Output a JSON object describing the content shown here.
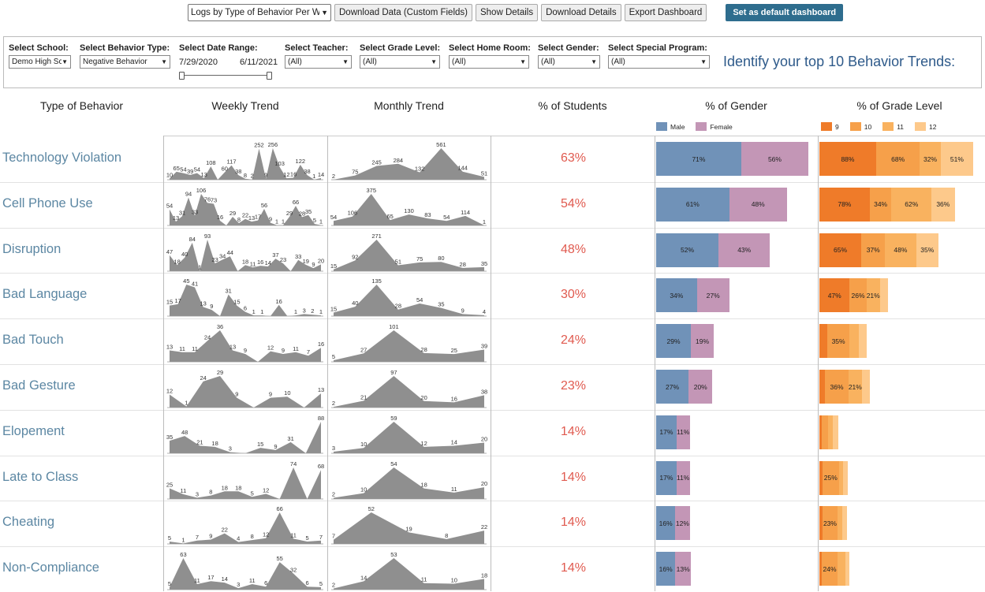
{
  "toolbar": {
    "view_select": "Logs by Type of Behavior Per Week",
    "download_data": "Download Data (Custom Fields)",
    "show_details": "Show Details",
    "download_details": "Download Details",
    "export_dashboard": "Export Dashboard",
    "set_default": "Set as default dashboard"
  },
  "filters": {
    "school": {
      "label": "Select School:",
      "value": "Demo High School"
    },
    "behavior_type": {
      "label": "Select Behavior Type:",
      "value": "Negative Behavior"
    },
    "date_range": {
      "label": "Select Date Range:",
      "start": "7/29/2020",
      "end": "6/11/2021"
    },
    "teacher": {
      "label": "Select Teacher:",
      "value": "(All)"
    },
    "grade_level": {
      "label": "Select Grade Level:",
      "value": "(All)"
    },
    "home_room": {
      "label": "Select Home Room:",
      "value": "(All)"
    },
    "gender": {
      "label": "Select Gender:",
      "value": "(All)"
    },
    "special_program": {
      "label": "Select Special Program:",
      "value": "(All)"
    },
    "title": "Identify your top 10 Behavior Trends:"
  },
  "headers": {
    "type": "Type of Behavior",
    "weekly": "Weekly Trend",
    "monthly": "Monthly Trend",
    "students": "% of Students",
    "gender": "% of Gender",
    "grade": "% of Grade Level"
  },
  "legends": {
    "gender": [
      {
        "name": "Male",
        "color": "#7092b8"
      },
      {
        "name": "Female",
        "color": "#c396b6"
      }
    ],
    "grade": [
      {
        "name": "9",
        "color": "#ef7b29"
      },
      {
        "name": "10",
        "color": "#f6a04a"
      },
      {
        "name": "11",
        "color": "#f9b25f"
      },
      {
        "name": "12",
        "color": "#fdc98b"
      }
    ]
  },
  "colors": {
    "male": "#7092b8",
    "female": "#c396b6",
    "grade": [
      "#ef7b29",
      "#f6a04a",
      "#f9b25f",
      "#fdc98b"
    ],
    "area": "#8f8f8f",
    "pct": "#e05a4f"
  },
  "rows": [
    {
      "name": "Technology Violation",
      "pct": "63%",
      "weekly": [
        10,
        65,
        54,
        39,
        54,
        13,
        108,
        "",
        60,
        117,
        38,
        8,
        2,
        252,
        9,
        256,
        103,
        12,
        16,
        122,
        38,
        1,
        14
      ],
      "monthly": [
        2,
        75,
        245,
        284,
        132,
        561,
        144,
        51
      ],
      "gender": [
        {
          "v": 71,
          "l": "71%"
        },
        {
          "v": 56,
          "l": "56%"
        }
      ],
      "grade": [
        {
          "v": 88,
          "l": "88%"
        },
        {
          "v": 68,
          "l": "68%"
        },
        {
          "v": 32,
          "l": "32%"
        },
        {
          "v": 51,
          "l": "51%"
        }
      ]
    },
    {
      "name": "Cell Phone Use",
      "pct": "54%",
      "weekly": [
        54,
        13,
        31,
        94,
        33,
        106,
        76,
        73,
        16,
        "",
        29,
        8,
        22,
        13,
        17,
        56,
        9,
        1,
        1,
        29,
        66,
        28,
        35,
        5,
        1
      ],
      "monthly": [
        54,
        106,
        375,
        65,
        130,
        83,
        54,
        114,
        1
      ],
      "gender": [
        {
          "v": 61,
          "l": "61%"
        },
        {
          "v": 48,
          "l": "48%"
        }
      ],
      "grade": [
        {
          "v": 78,
          "l": "78%"
        },
        {
          "v": 34,
          "l": "34%"
        },
        {
          "v": 62,
          "l": "62%"
        },
        {
          "v": 36,
          "l": "36%"
        }
      ]
    },
    {
      "name": "Disruption",
      "pct": "48%",
      "weekly": [
        47,
        18,
        40,
        84,
        1,
        93,
        23,
        34,
        44,
        "",
        18,
        11,
        16,
        14,
        37,
        23,
        "",
        33,
        19,
        9,
        20
      ],
      "monthly": [
        15,
        92,
        271,
        51,
        75,
        80,
        28,
        35
      ],
      "gender": [
        {
          "v": 52,
          "l": "52%"
        },
        {
          "v": 43,
          "l": "43%"
        }
      ],
      "grade": [
        {
          "v": 65,
          "l": "65%"
        },
        {
          "v": 37,
          "l": "37%"
        },
        {
          "v": 48,
          "l": "48%"
        },
        {
          "v": 35,
          "l": "35%"
        }
      ]
    },
    {
      "name": "Bad Language",
      "pct": "30%",
      "weekly": [
        15,
        17,
        45,
        41,
        13,
        9,
        "",
        31,
        15,
        6,
        1,
        1,
        "",
        16,
        "",
        1,
        3,
        2,
        1
      ],
      "monthly": [
        15,
        40,
        135,
        28,
        54,
        35,
        9,
        4
      ],
      "gender": [
        {
          "v": 34,
          "l": "34%"
        },
        {
          "v": 27,
          "l": "27%"
        }
      ],
      "grade": [
        {
          "v": 47,
          "l": "47%"
        },
        {
          "v": 26,
          "l": "26%"
        },
        {
          "v": 21,
          "l": "21%"
        },
        {
          "v": 12,
          "l": ""
        }
      ]
    },
    {
      "name": "Bad Touch",
      "pct": "24%",
      "weekly": [
        13,
        11,
        11,
        24,
        36,
        13,
        9,
        "",
        12,
        9,
        11,
        7,
        16
      ],
      "monthly": [
        5,
        27,
        101,
        28,
        25,
        39
      ],
      "gender": [
        {
          "v": 29,
          "l": "29%"
        },
        {
          "v": 19,
          "l": "19%"
        }
      ],
      "grade": [
        {
          "v": 12,
          "l": ""
        },
        {
          "v": 35,
          "l": "35%"
        },
        {
          "v": 14,
          "l": ""
        },
        {
          "v": 12,
          "l": ""
        }
      ]
    },
    {
      "name": "Bad Gesture",
      "pct": "23%",
      "weekly": [
        12,
        1,
        24,
        29,
        9,
        "",
        9,
        10,
        "",
        13
      ],
      "monthly": [
        2,
        21,
        97,
        20,
        16,
        38
      ],
      "gender": [
        {
          "v": 27,
          "l": "27%"
        },
        {
          "v": 20,
          "l": "20%"
        }
      ],
      "grade": [
        {
          "v": 9,
          "l": ""
        },
        {
          "v": 36,
          "l": "36%"
        },
        {
          "v": 21,
          "l": "21%"
        },
        {
          "v": 12,
          "l": ""
        }
      ]
    },
    {
      "name": "Elopement",
      "pct": "14%",
      "weekly": [
        35,
        48,
        21,
        18,
        3,
        "",
        15,
        9,
        31,
        "",
        88
      ],
      "monthly": [
        3,
        10,
        59,
        12,
        14,
        20
      ],
      "gender": [
        {
          "v": 17,
          "l": "17%"
        },
        {
          "v": 11,
          "l": "11%"
        }
      ],
      "grade": [
        {
          "v": 4,
          "l": ""
        },
        {
          "v": 10,
          "l": ""
        },
        {
          "v": 7,
          "l": ""
        },
        {
          "v": 8,
          "l": ""
        }
      ]
    },
    {
      "name": "Late to Class",
      "pct": "14%",
      "weekly": [
        25,
        11,
        3,
        8,
        18,
        18,
        5,
        12,
        "",
        74,
        "",
        68
      ],
      "monthly": [
        2,
        10,
        54,
        18,
        11,
        20
      ],
      "gender": [
        {
          "v": 17,
          "l": "17%"
        },
        {
          "v": 11,
          "l": "11%"
        }
      ],
      "grade": [
        {
          "v": 5,
          "l": ""
        },
        {
          "v": 25,
          "l": "25%"
        },
        {
          "v": 7,
          "l": ""
        },
        {
          "v": 7,
          "l": ""
        }
      ]
    },
    {
      "name": "Cheating",
      "pct": "14%",
      "weekly": [
        5,
        1,
        7,
        9,
        22,
        4,
        8,
        12,
        66,
        11,
        5,
        7
      ],
      "monthly": [
        7,
        52,
        19,
        8,
        22
      ],
      "gender": [
        {
          "v": 16,
          "l": "16%"
        },
        {
          "v": 12,
          "l": "12%"
        }
      ],
      "grade": [
        {
          "v": 5,
          "l": ""
        },
        {
          "v": 23,
          "l": "23%"
        },
        {
          "v": 8,
          "l": ""
        },
        {
          "v": 7,
          "l": ""
        }
      ]
    },
    {
      "name": "Non-Compliance",
      "pct": "14%",
      "weekly": [
        5,
        63,
        11,
        17,
        14,
        3,
        11,
        6,
        55,
        32,
        6,
        5
      ],
      "monthly": [
        2,
        14,
        53,
        11,
        10,
        18
      ],
      "gender": [
        {
          "v": 16,
          "l": "16%"
        },
        {
          "v": 13,
          "l": "13%"
        }
      ],
      "grade": [
        {
          "v": 4,
          "l": ""
        },
        {
          "v": 24,
          "l": "24%"
        },
        {
          "v": 12,
          "l": ""
        },
        {
          "v": 7,
          "l": ""
        }
      ]
    }
  ]
}
